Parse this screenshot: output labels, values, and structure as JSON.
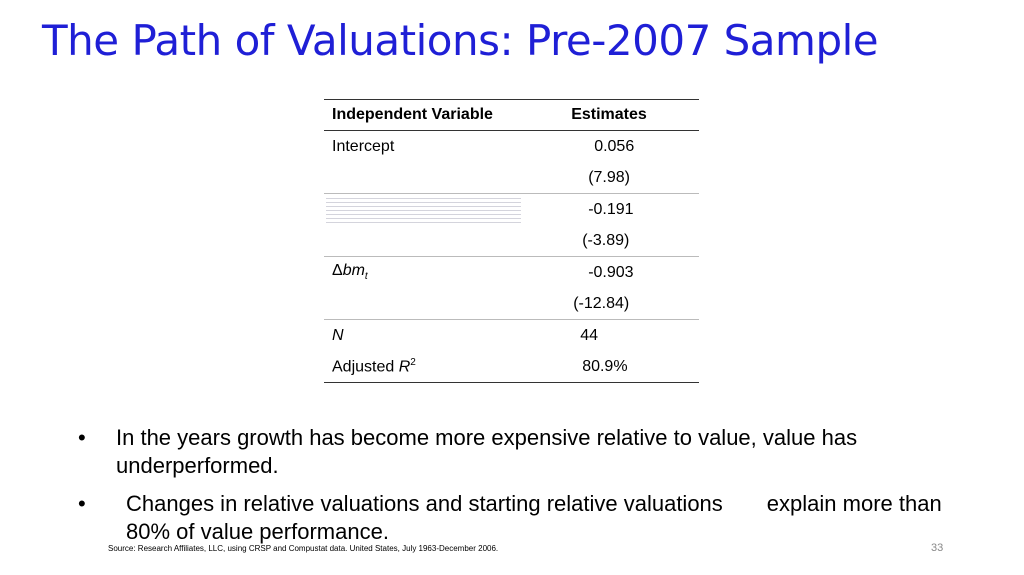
{
  "slide": {
    "title": "The Path of Valuations: Pre-2007 Sample",
    "table": {
      "headers": [
        "Independent Variable",
        "Estimates"
      ],
      "rows": [
        {
          "label": "Intercept",
          "estimate": "0.056",
          "tstat": "(7.98)"
        },
        {
          "label": "",
          "estimate": "-0.191",
          "tstat": "(-3.89)"
        },
        {
          "label_prefix": "Δ",
          "label_italic": "bm",
          "label_sub": "t",
          "estimate": "-0.903",
          "tstat": "(-12.84)"
        },
        {
          "label": "N",
          "estimate": "44"
        },
        {
          "label": "Adjusted ",
          "label_italic": "R",
          "label_sup": "2",
          "estimate": "80.9%"
        }
      ]
    },
    "bullets": [
      "In the years growth has become more expensive relative to value, value has underperformed.",
      {
        "part1": "Changes in relative valuations and starting relative valuations",
        "part2": "explain more than 80% of value performance."
      }
    ],
    "source": "Source: Research Affiliates, LLC, using CRSP and Compustat data. United States, July 1963-December 2006.",
    "page_number": "33"
  }
}
